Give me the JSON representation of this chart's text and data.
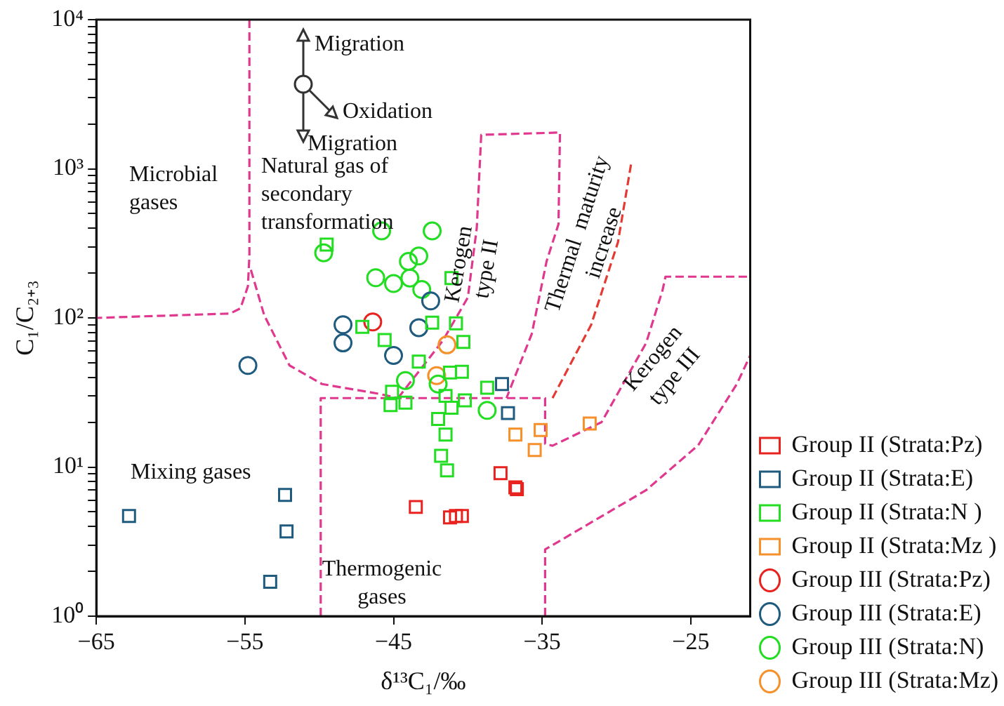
{
  "chart_data": {
    "type": "scatter",
    "xlabel": "δ¹³C₁/‰",
    "ylabel": "C₁/C₂₊₃",
    "log": "y",
    "grid": false,
    "legend": "right",
    "xlim": [
      -65,
      -21
    ],
    "xticks": [
      {
        "value": -65,
        "label": "−65"
      },
      {
        "value": -55,
        "label": "−55"
      },
      {
        "value": -45,
        "label": "−45"
      },
      {
        "value": -35,
        "label": "−35"
      },
      {
        "value": -25,
        "label": "−25"
      }
    ],
    "ylim": [
      1,
      10000
    ],
    "yticks": [
      {
        "value": 1,
        "label": "10⁰"
      },
      {
        "value": 2,
        "label": null
      },
      {
        "value": 3,
        "label": null
      },
      {
        "value": 4,
        "label": null
      },
      {
        "value": 5,
        "label": null
      },
      {
        "value": 6,
        "label": null
      },
      {
        "value": 7,
        "label": null
      },
      {
        "value": 8,
        "label": null
      },
      {
        "value": 9,
        "label": null
      },
      {
        "value": 10,
        "label": "10¹"
      },
      {
        "value": 20,
        "label": null
      },
      {
        "value": 30,
        "label": null
      },
      {
        "value": 40,
        "label": null
      },
      {
        "value": 50,
        "label": null
      },
      {
        "value": 60,
        "label": null
      },
      {
        "value": 70,
        "label": null
      },
      {
        "value": 80,
        "label": null
      },
      {
        "value": 90,
        "label": null
      },
      {
        "value": 100,
        "label": "10²"
      },
      {
        "value": 200,
        "label": null
      },
      {
        "value": 300,
        "label": null
      },
      {
        "value": 400,
        "label": null
      },
      {
        "value": 500,
        "label": null
      },
      {
        "value": 600,
        "label": null
      },
      {
        "value": 700,
        "label": null
      },
      {
        "value": 800,
        "label": null
      },
      {
        "value": 900,
        "label": null
      },
      {
        "value": 1000,
        "label": "10³"
      },
      {
        "value": 2000,
        "label": null
      },
      {
        "value": 3000,
        "label": null
      },
      {
        "value": 4000,
        "label": null
      },
      {
        "value": 5000,
        "label": null
      },
      {
        "value": 6000,
        "label": null
      },
      {
        "value": 7000,
        "label": null
      },
      {
        "value": 8000,
        "label": null
      },
      {
        "value": 9000,
        "label": null
      },
      {
        "value": 10000,
        "label": "10⁴"
      }
    ],
    "annotations": [
      "Microbial gases",
      "Natural gas of secondary transformation",
      "Mixing gases",
      "Thermogenic gases",
      "Kerogen type II",
      "Thermal  maturity increase",
      "Kerogen type III",
      "Migration",
      "Oxidation",
      "Migration"
    ],
    "series": [
      {
        "name": "Group II (Strata:Pz)",
        "color": "#e8231f",
        "marker": "square",
        "x": [
          -43.5,
          -41.2,
          -40.8,
          -40.4,
          -37.8,
          -36.8,
          -36.7
        ],
        "values": [
          5.4,
          4.6,
          4.7,
          4.7,
          9.1,
          7.3,
          7.1
        ]
      },
      {
        "name": "Group II (Strata:E)",
        "color": "#1f5a7f",
        "marker": "square",
        "x": [
          -62.8,
          -52.3,
          -52.2,
          -53.3,
          -37.7,
          -37.3
        ],
        "values": [
          4.7,
          6.5,
          3.7,
          1.7,
          36,
          23
        ]
      },
      {
        "name": "Group II (Strata:N )",
        "color": "#22dd22",
        "marker": "square",
        "x": [
          -49.5,
          -41.1,
          -47.1,
          -42.4,
          -40.8,
          -45.6,
          -40.3,
          -43.3,
          -41.2,
          -40.4,
          -38.7,
          -45.1,
          -45.2,
          -44.2,
          -41.5,
          -41.1,
          -40.2,
          -42,
          -41.5,
          -41.8,
          -41.4
        ],
        "values": [
          310,
          185,
          87,
          93,
          92,
          71,
          69,
          51,
          43,
          43.5,
          34,
          32,
          26,
          27,
          30,
          25,
          28,
          21,
          16.5,
          11.9,
          9.5
        ]
      },
      {
        "name": "Group II (Strata:Mz )",
        "color": "#f5902a",
        "marker": "square",
        "x": [
          -36.8,
          -35.1,
          -35.5,
          -31.8
        ],
        "values": [
          16.5,
          17.7,
          13,
          19.6
        ]
      },
      {
        "name": "Group III (Strata:Pz)",
        "color": "#e8231f",
        "marker": "circle",
        "x": [
          -46.4
        ],
        "values": [
          94
        ]
      },
      {
        "name": "Group III (Strata:E)",
        "color": "#1f5a7f",
        "marker": "circle",
        "x": [
          -54.8,
          -48.4,
          -48.4,
          -45,
          -43.3,
          -42.5
        ],
        "values": [
          48,
          90,
          68,
          56,
          86,
          130
        ]
      },
      {
        "name": "Group III (Strata:N)",
        "color": "#22dd22",
        "marker": "circle",
        "x": [
          -45.8,
          -42.4,
          -49.7,
          -43.3,
          -44,
          -46.2,
          -45,
          -43.9,
          -43.1,
          -44.2,
          -42,
          -38.7
        ],
        "values": [
          383,
          383,
          273,
          260,
          239,
          186,
          170,
          185,
          155,
          38,
          36,
          24
        ]
      },
      {
        "name": "Group III (Strata:Mz)",
        "color": "#f5902a",
        "marker": "circle",
        "x": [
          -41.4,
          -42.1
        ],
        "values": [
          66,
          41
        ]
      },
      {
        "type": "line",
        "color": "#e0388f",
        "line_style": "dashed",
        "x": [
          -54.7,
          -54.7,
          -54.8,
          -55.3,
          -56,
          -65
        ],
        "values": [
          10000,
          260,
          163,
          116,
          107,
          100
        ]
      },
      {
        "type": "line",
        "color": "#e0388f",
        "line_style": "dashed",
        "x": [
          -54.6,
          -53.7,
          -52,
          -49.8,
          -46,
          -44.7
        ],
        "values": [
          210,
          104,
          48,
          36,
          31,
          29
        ]
      },
      {
        "type": "line",
        "color": "#e0388f",
        "line_style": "dashed",
        "x": [
          -44.7,
          -41.7,
          -40,
          -39.4,
          -39.1,
          -33.8,
          -33.9,
          -34.7,
          -35.7,
          -37.4
        ],
        "values": [
          29,
          70,
          137,
          400,
          1690,
          1750,
          425,
          240,
          78,
          29
        ]
      },
      {
        "type": "line",
        "color": "#e0388f",
        "line_style": "dashed",
        "x": [
          -49.9,
          -49.9,
          -34.8,
          -34.8,
          -34.3,
          -31,
          -28,
          -26.9,
          -26.7,
          -21
        ],
        "values": [
          1,
          29,
          29,
          14.3,
          13.9,
          20,
          68,
          153,
          189,
          189
        ]
      },
      {
        "type": "line",
        "color": "#e0388f",
        "line_style": "dashed",
        "x": [
          -34.8,
          -34.8,
          -28,
          -24.5,
          -21.9,
          -21
        ],
        "values": [
          1,
          2.8,
          7,
          14,
          36,
          56
        ]
      },
      {
        "type": "line",
        "color": "#e53a33",
        "line_style": "dashed",
        "x": [
          -34.3,
          -31.7,
          -29.9,
          -29
        ],
        "values": [
          29,
          90,
          321,
          1100
        ]
      }
    ]
  }
}
